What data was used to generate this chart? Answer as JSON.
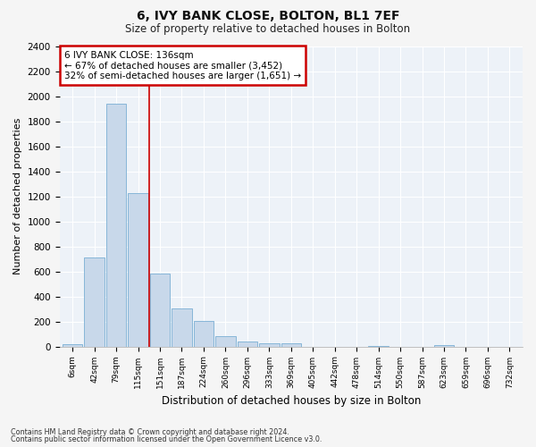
{
  "title1": "6, IVY BANK CLOSE, BOLTON, BL1 7EF",
  "title2": "Size of property relative to detached houses in Bolton",
  "xlabel": "Distribution of detached houses by size in Bolton",
  "ylabel": "Number of detached properties",
  "bar_labels": [
    "6sqm",
    "42sqm",
    "79sqm",
    "115sqm",
    "151sqm",
    "187sqm",
    "224sqm",
    "260sqm",
    "296sqm",
    "333sqm",
    "369sqm",
    "405sqm",
    "442sqm",
    "478sqm",
    "514sqm",
    "550sqm",
    "587sqm",
    "623sqm",
    "659sqm",
    "696sqm",
    "732sqm"
  ],
  "bar_heights": [
    15,
    710,
    1940,
    1225,
    580,
    305,
    205,
    80,
    40,
    25,
    25,
    0,
    0,
    0,
    5,
    0,
    0,
    10,
    0,
    0,
    0
  ],
  "bar_color": "#c8d8ea",
  "bar_edge_color": "#7aafd4",
  "subject_bar_index": 3,
  "subject_label": "6 IVY BANK CLOSE: 136sqm",
  "annotation_line1": "← 67% of detached houses are smaller (3,452)",
  "annotation_line2": "32% of semi-detached houses are larger (1,651) →",
  "vline_x": 3.5,
  "vline_color": "#cc0000",
  "ylim": [
    0,
    2400
  ],
  "yticks": [
    0,
    200,
    400,
    600,
    800,
    1000,
    1200,
    1400,
    1600,
    1800,
    2000,
    2200,
    2400
  ],
  "bg_color": "#edf2f8",
  "grid_color": "#ffffff",
  "annotation_box_color": "#cc0000",
  "footer1": "Contains HM Land Registry data © Crown copyright and database right 2024.",
  "footer2": "Contains public sector information licensed under the Open Government Licence v3.0."
}
